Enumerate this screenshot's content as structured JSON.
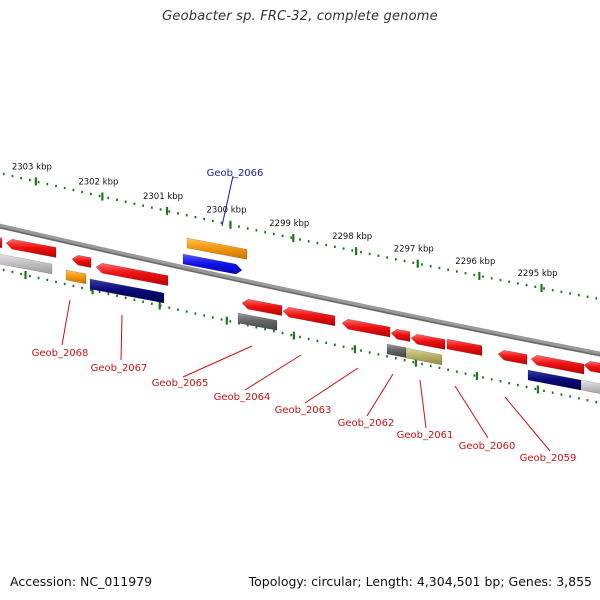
{
  "title": "Geobacter sp. FRC-32, complete genome",
  "footer": {
    "accession": "Accession: NC_011979",
    "summary": "Topology: circular; Length: 4,304,501 bp; Genes: 3,855"
  },
  "scale": {
    "unit": "kbp",
    "ticks": [
      {
        "label": "2303 kbp",
        "t": 0.067
      },
      {
        "label": "2302 kbp",
        "t": 0.176
      },
      {
        "label": "2301 kbp",
        "t": 0.282
      },
      {
        "label": "2300 kbp",
        "t": 0.386
      },
      {
        "label": "2299 kbp",
        "t": 0.489
      },
      {
        "label": "2298 kbp",
        "t": 0.592
      },
      {
        "label": "2297 kbp",
        "t": 0.693
      },
      {
        "label": "2296 kbp",
        "t": 0.794
      },
      {
        "label": "2295 kbp",
        "t": 0.896
      }
    ]
  },
  "colors": {
    "red": "#ee1111",
    "gray": "#666666",
    "light_gray": "#c4c4c4",
    "orange": "#f39a10",
    "blue": "#1515ee",
    "navy": "#0a0a78",
    "olive": "#b9b46a",
    "tick_green": "#1a7a1a",
    "label_red": "#cc1111",
    "label_blue": "#1a1ab4",
    "backbone": "#888888"
  },
  "genes": [
    {
      "label": "Geob_2068",
      "color": "red",
      "strand": "+"
    },
    {
      "label": "Geob_2067",
      "color": "red",
      "strand": "-"
    },
    {
      "label": "Geob_2066",
      "color": "orange",
      "strand": "+"
    },
    {
      "label": "Geob_2065",
      "color": "red",
      "strand": "-"
    },
    {
      "label": "Geob_2064",
      "color": "red",
      "strand": "-"
    },
    {
      "label": "Geob_2063",
      "color": "red",
      "strand": "-"
    },
    {
      "label": "Geob_2062",
      "color": "red",
      "strand": "-"
    },
    {
      "label": "Geob_2061",
      "color": "red",
      "strand": "-"
    },
    {
      "label": "Geob_2060",
      "color": "red",
      "strand": "-"
    },
    {
      "label": "Geob_2059",
      "color": "red",
      "strand": "-"
    }
  ]
}
